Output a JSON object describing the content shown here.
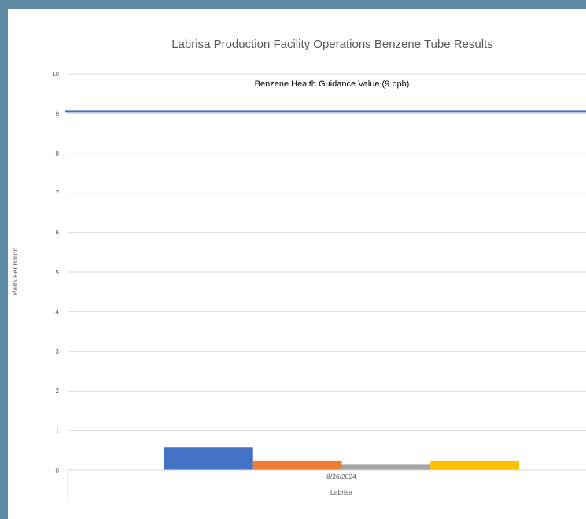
{
  "chart_data": {
    "type": "bar",
    "title": "Labrisa Production Facility Operations Benzene Tube Results",
    "xlabel": "",
    "ylabel": "Parts Per Billion",
    "ylim": [
      0,
      10
    ],
    "yticks": [
      "0",
      "1",
      "2",
      "3",
      "4",
      "5",
      "6",
      "7",
      "8",
      "9",
      "10"
    ],
    "category_levels": [
      [
        "8/26/2024"
      ],
      [
        "Labrisa"
      ]
    ],
    "categories": [
      "8/26/2024"
    ],
    "group_label": "Labrisa",
    "grid": true,
    "series": [
      {
        "values": [
          0.57
        ],
        "color": "#4472c4"
      },
      {
        "values": [
          0.24
        ],
        "color": "#ed7d31"
      },
      {
        "values": [
          0.15
        ],
        "color": "#a5a5a5"
      },
      {
        "values": [
          0.24
        ],
        "color": "#ffc000"
      }
    ],
    "reference_line": {
      "label": "Benzene Health Guidance Value (9 ppb)",
      "value": 9.05,
      "color": "#4472c4"
    }
  }
}
